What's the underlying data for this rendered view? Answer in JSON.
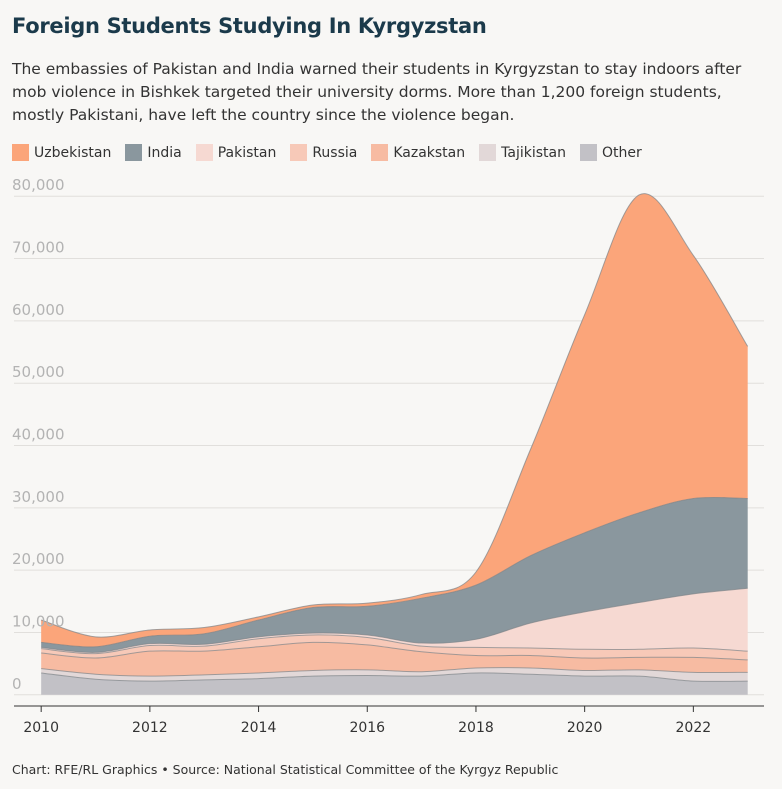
{
  "header": {
    "title": "Foreign Students Studying In Kyrgyzstan",
    "subtitle": "The embassies of Pakistan and India warned their students in Kyrgyzstan to stay indoors after mob violence in Bishkek targeted their university dorms. More than 1,200 foreign students, mostly Pakistani, have left the country since the violence began."
  },
  "footer": {
    "text": "Chart: RFE/RL Graphics • Source: National Statistical Committee of the Kyrgyz Republic"
  },
  "chart_data": {
    "type": "area",
    "stacked": true,
    "title": "Foreign Students Studying In Kyrgyzstan",
    "xlabel": "",
    "ylabel": "",
    "x": [
      2010,
      2011,
      2012,
      2013,
      2014,
      2015,
      2016,
      2017,
      2018,
      2019,
      2020,
      2021,
      2022,
      2023
    ],
    "x_ticks": [
      2010,
      2012,
      2014,
      2016,
      2018,
      2020,
      2022
    ],
    "y_ticks": [
      0,
      10000,
      20000,
      30000,
      40000,
      50000,
      60000,
      70000,
      80000
    ],
    "y_tick_labels": [
      "0",
      "10,000",
      "20,000",
      "30,000",
      "40,000",
      "50,000",
      "60,000",
      "70,000",
      "80,000"
    ],
    "xlim": [
      2009.5,
      2023.3
    ],
    "ylim": [
      -1800,
      81000
    ],
    "grid": true,
    "legend_position": "top-left",
    "series": [
      {
        "name": "Other",
        "color": "#c2c1c6",
        "values": [
          3500,
          2500,
          2200,
          2400,
          2600,
          3000,
          3100,
          3000,
          3500,
          3300,
          3000,
          3000,
          2200,
          2200
        ]
      },
      {
        "name": "Tajikistan",
        "color": "#e2d8d8",
        "values": [
          700,
          800,
          800,
          800,
          900,
          900,
          900,
          700,
          800,
          1000,
          900,
          1000,
          1400,
          1400
        ]
      },
      {
        "name": "Kazakstan",
        "color": "#f7bba2",
        "values": [
          2500,
          2600,
          4000,
          3800,
          4200,
          4500,
          4000,
          3200,
          2000,
          2000,
          2000,
          2000,
          2400,
          2000
        ]
      },
      {
        "name": "Russia",
        "color": "#f7c9b8",
        "values": [
          700,
          700,
          900,
          800,
          1300,
          1200,
          1200,
          900,
          1300,
          1200,
          1400,
          1300,
          1500,
          1400
        ]
      },
      {
        "name": "Pakistan",
        "color": "#f6d9d2",
        "values": [
          200,
          200,
          300,
          300,
          300,
          300,
          400,
          500,
          1300,
          4000,
          6000,
          7500,
          8700,
          10100
        ]
      },
      {
        "name": "India",
        "color": "#8a979e",
        "values": [
          800,
          900,
          1200,
          1700,
          2700,
          4100,
          4600,
          7200,
          8700,
          10800,
          12700,
          14400,
          15300,
          14400
        ]
      },
      {
        "name": "Uzbekistan",
        "color": "#fba57a",
        "values": [
          3600,
          1600,
          1000,
          1000,
          500,
          400,
          500,
          600,
          2100,
          17000,
          35000,
          51000,
          39000,
          24400
        ]
      }
    ],
    "legend_order": [
      "Uzbekistan",
      "India",
      "Pakistan",
      "Russia",
      "Kazakstan",
      "Tajikistan",
      "Other"
    ]
  }
}
